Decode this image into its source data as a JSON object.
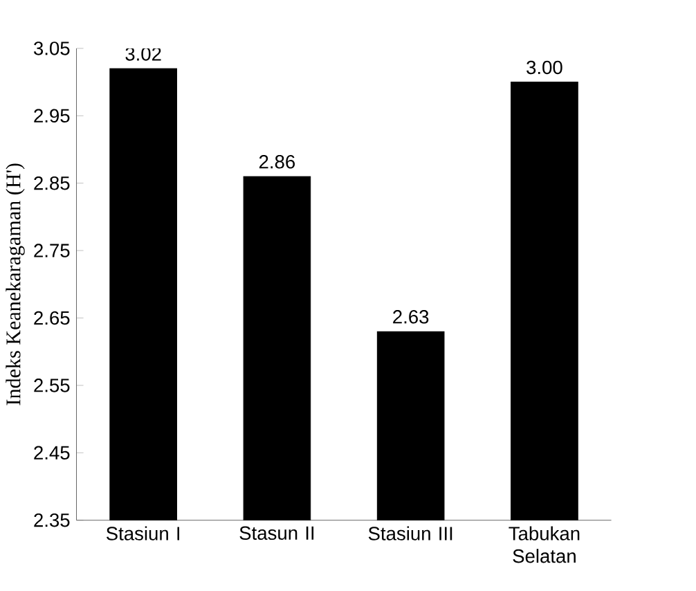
{
  "chart_data": {
    "type": "bar",
    "ylabel": "Indeks Keanekaragaman (H')",
    "categories": [
      "Stasiun I",
      "Stasun II",
      "Stasiun III",
      "Tabukan Selatan"
    ],
    "values": [
      3.02,
      2.86,
      2.63,
      3.0
    ],
    "value_labels": [
      "3.02",
      "2.86",
      "2.63",
      "3.00"
    ],
    "colors": [
      "#000000",
      "#000000",
      "#000000",
      "#000000"
    ],
    "ylim": [
      2.35,
      3.05
    ],
    "yticks": [
      2.35,
      2.45,
      2.55,
      2.65,
      2.75,
      2.85,
      2.95,
      3.05
    ],
    "grid": false
  }
}
